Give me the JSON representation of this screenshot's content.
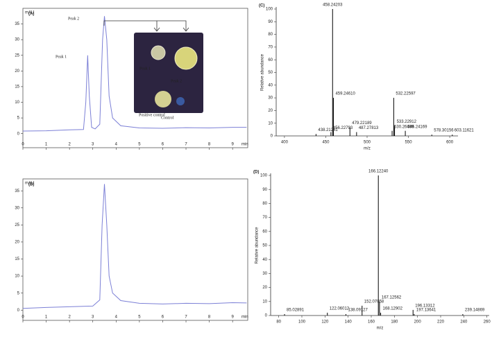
{
  "chart_data": [
    {
      "type": "line",
      "panel": "(A)",
      "y_label": "mAU",
      "x_label": "min",
      "color": "#7b7fd6",
      "xlim": [
        0,
        9.65
      ],
      "xticks": [
        0,
        1,
        2,
        3,
        4,
        5,
        6,
        7,
        8,
        9
      ],
      "ylim": [
        -4.5,
        40
      ],
      "yticks": [
        0,
        5,
        10,
        15,
        20,
        25,
        30,
        35
      ],
      "x": [
        0,
        1,
        2,
        2.6,
        2.7,
        2.78,
        2.85,
        2.95,
        3.1,
        3.3,
        3.42,
        3.5,
        3.6,
        3.7,
        3.85,
        4.2,
        5,
        6,
        7,
        8,
        9,
        9.6
      ],
      "values": [
        0.8,
        0.9,
        1.2,
        1.3,
        10,
        25,
        12,
        2,
        1.5,
        3,
        30,
        37.5,
        30,
        12,
        5,
        2.5,
        1.8,
        1.7,
        1.9,
        1.8,
        2.0,
        2.0
      ],
      "annotations": [
        "Peak 1",
        "Peak 2",
        "Peak 1",
        "Peak 2",
        "Positive control",
        "Control"
      ]
    },
    {
      "type": "line",
      "panel": "(B)",
      "y_label": "mAU",
      "x_label": "min",
      "color": "#7b7fd6",
      "xlim": [
        0,
        9.65
      ],
      "xticks": [
        0,
        1,
        2,
        3,
        4,
        5,
        6,
        7,
        8,
        9
      ],
      "ylim": [
        -3,
        38.5
      ],
      "yticks": [
        0,
        5,
        10,
        15,
        20,
        25,
        30,
        35
      ],
      "x": [
        0,
        1,
        2,
        3,
        3.3,
        3.4,
        3.5,
        3.6,
        3.7,
        3.85,
        4.2,
        5,
        6,
        7,
        8,
        9,
        9.6
      ],
      "values": [
        0.5,
        0.8,
        1.0,
        1.2,
        3,
        25,
        37,
        25,
        10,
        5,
        2.8,
        2.0,
        1.8,
        2.0,
        1.9,
        2.2,
        2.1
      ],
      "annotations": []
    },
    {
      "type": "spectrum",
      "panel": "(C)",
      "y_label": "Relative abundance",
      "x_label": "m/z",
      "color": "#000000",
      "xlim": [
        390,
        610
      ],
      "xticks": [
        400,
        450,
        500,
        550,
        600
      ],
      "ylim": [
        0,
        100
      ],
      "yticks": [
        0,
        10,
        20,
        30,
        40,
        50,
        60,
        70,
        80,
        90,
        100
      ],
      "x": [
        438.21241,
        456.22793,
        458.24203,
        459.2461,
        479.22189,
        487.27813,
        530.26499,
        532.22597,
        533.22912,
        546.24169,
        578.30156,
        603.11621
      ],
      "values": [
        1.5,
        3,
        100,
        30,
        7,
        3,
        4,
        30,
        8,
        4,
        1,
        1
      ],
      "labels": [
        "438.21241",
        "456.22793",
        "458.24203",
        "459.24610",
        "479.22189",
        "487.27813",
        "530.26499",
        "532.22597",
        "533.22912",
        "546.24169",
        "578.30156",
        "603.11621"
      ]
    },
    {
      "type": "spectrum",
      "panel": "(D)",
      "y_label": "Relative abundance",
      "x_label": "m/z",
      "color": "#000000",
      "xlim": [
        73,
        262
      ],
      "xticks": [
        80,
        100,
        120,
        140,
        160,
        180,
        200,
        220,
        240,
        260
      ],
      "ylim": [
        0,
        100
      ],
      "yticks": [
        0,
        10,
        20,
        30,
        40,
        50,
        60,
        70,
        80,
        90,
        100
      ],
      "x": [
        85.02891,
        122.06012,
        138.09127,
        152.07058,
        166.1224,
        167.12562,
        168.12902,
        196.13312,
        197.13641,
        239.14869
      ],
      "values": [
        1,
        2,
        1,
        7,
        100,
        10,
        2,
        4,
        1,
        1
      ],
      "labels": [
        "85.02891",
        "122.06012",
        "138.09127",
        "152.07058",
        "166.12240",
        "167.12562",
        "168.12902",
        "196.13312",
        "197.13641",
        "239.14869"
      ]
    }
  ]
}
